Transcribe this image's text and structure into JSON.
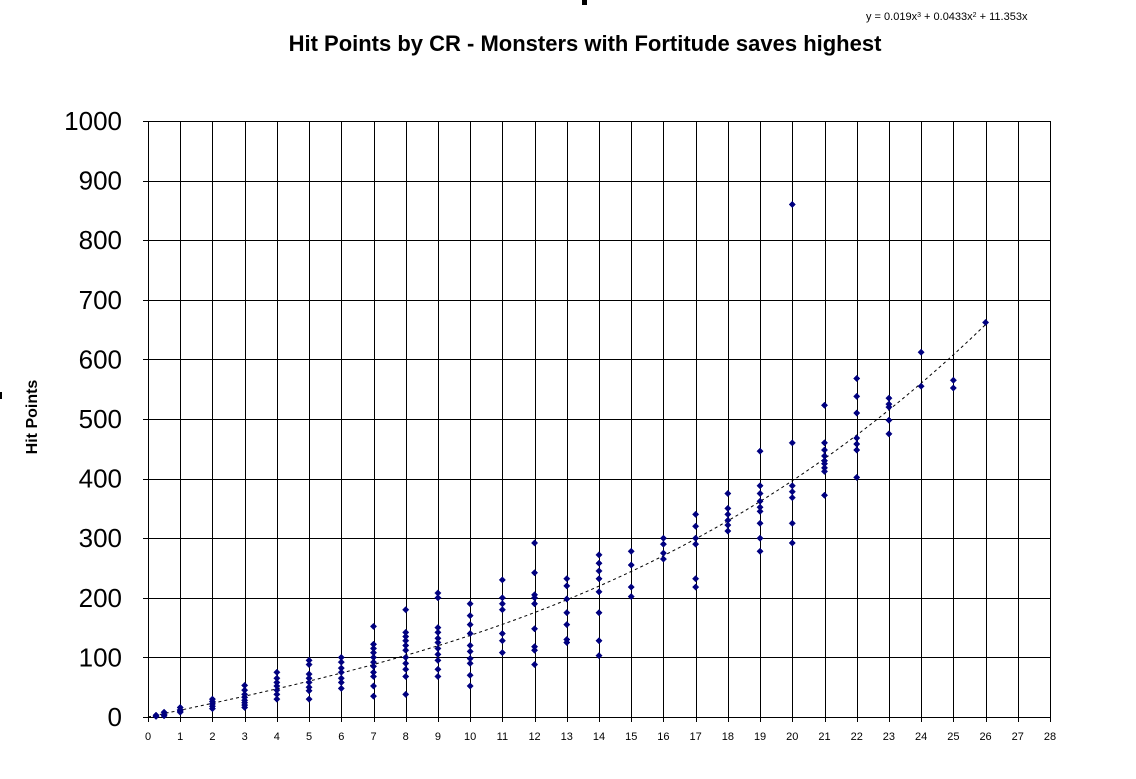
{
  "chart_data": {
    "type": "scatter",
    "title": "Hit Points by CR - Monsters with Fortitude saves highest",
    "ylabel": "Hit Points",
    "xlabel": "",
    "xlim": [
      0,
      28
    ],
    "ylim": [
      0,
      1000
    ],
    "x_ticks": [
      0,
      1,
      2,
      3,
      4,
      5,
      6,
      7,
      8,
      9,
      10,
      11,
      12,
      13,
      14,
      15,
      16,
      17,
      18,
      19,
      20,
      21,
      22,
      23,
      24,
      25,
      26,
      27,
      28
    ],
    "y_ticks": [
      0,
      100,
      200,
      300,
      400,
      500,
      600,
      700,
      800,
      900,
      1000
    ],
    "grid": true,
    "legend": "none",
    "colors": {
      "points": "#000080",
      "trendline": "#000000",
      "grid": "#000000"
    },
    "trendline": {
      "type": "polynomial",
      "label_base": "y = 0.019x",
      "label_exp1": "3",
      "label_mid": " + 0.0433x",
      "label_exp2": "2",
      "label_end": " + 11.353x",
      "coefficients": {
        "a3": 0.019,
        "a2": 0.0433,
        "a1": 11.353,
        "a0": 0
      },
      "x_range": [
        0,
        26
      ]
    },
    "points": [
      [
        0.25,
        3
      ],
      [
        0.25,
        1
      ],
      [
        0.5,
        8
      ],
      [
        0.5,
        4
      ],
      [
        0.5,
        2
      ],
      [
        1,
        16
      ],
      [
        1,
        12
      ],
      [
        1,
        10
      ],
      [
        1,
        8
      ],
      [
        2,
        30
      ],
      [
        2,
        26
      ],
      [
        2,
        22
      ],
      [
        2,
        18
      ],
      [
        2,
        14
      ],
      [
        3,
        53
      ],
      [
        3,
        45
      ],
      [
        3,
        38
      ],
      [
        3,
        33
      ],
      [
        3,
        28
      ],
      [
        3,
        24
      ],
      [
        3,
        20
      ],
      [
        3,
        16
      ],
      [
        4,
        75
      ],
      [
        4,
        65
      ],
      [
        4,
        58
      ],
      [
        4,
        52
      ],
      [
        4,
        45
      ],
      [
        4,
        38
      ],
      [
        4,
        30
      ],
      [
        5,
        95
      ],
      [
        5,
        88
      ],
      [
        5,
        72
      ],
      [
        5,
        65
      ],
      [
        5,
        58
      ],
      [
        5,
        50
      ],
      [
        5,
        44
      ],
      [
        5,
        30
      ],
      [
        6,
        100
      ],
      [
        6,
        92
      ],
      [
        6,
        82
      ],
      [
        6,
        75
      ],
      [
        6,
        65
      ],
      [
        6,
        58
      ],
      [
        6,
        48
      ],
      [
        7,
        152
      ],
      [
        7,
        122
      ],
      [
        7,
        115
      ],
      [
        7,
        108
      ],
      [
        7,
        100
      ],
      [
        7,
        92
      ],
      [
        7,
        85
      ],
      [
        7,
        75
      ],
      [
        7,
        68
      ],
      [
        7,
        52
      ],
      [
        7,
        35
      ],
      [
        8,
        180
      ],
      [
        8,
        142
      ],
      [
        8,
        135
      ],
      [
        8,
        128
      ],
      [
        8,
        120
      ],
      [
        8,
        112
      ],
      [
        8,
        100
      ],
      [
        8,
        90
      ],
      [
        8,
        80
      ],
      [
        8,
        68
      ],
      [
        8,
        38
      ],
      [
        9,
        208
      ],
      [
        9,
        200
      ],
      [
        9,
        150
      ],
      [
        9,
        142
      ],
      [
        9,
        132
      ],
      [
        9,
        125
      ],
      [
        9,
        115
      ],
      [
        9,
        105
      ],
      [
        9,
        95
      ],
      [
        9,
        80
      ],
      [
        9,
        68
      ],
      [
        10,
        190
      ],
      [
        10,
        170
      ],
      [
        10,
        155
      ],
      [
        10,
        140
      ],
      [
        10,
        120
      ],
      [
        10,
        110
      ],
      [
        10,
        98
      ],
      [
        10,
        90
      ],
      [
        10,
        70
      ],
      [
        10,
        52
      ],
      [
        11,
        230
      ],
      [
        11,
        200
      ],
      [
        11,
        190
      ],
      [
        11,
        180
      ],
      [
        11,
        140
      ],
      [
        11,
        128
      ],
      [
        11,
        108
      ],
      [
        12,
        292
      ],
      [
        12,
        242
      ],
      [
        12,
        205
      ],
      [
        12,
        200
      ],
      [
        12,
        190
      ],
      [
        12,
        148
      ],
      [
        12,
        118
      ],
      [
        12,
        112
      ],
      [
        12,
        88
      ],
      [
        13,
        232
      ],
      [
        13,
        220
      ],
      [
        13,
        198
      ],
      [
        13,
        175
      ],
      [
        13,
        155
      ],
      [
        13,
        130
      ],
      [
        13,
        125
      ],
      [
        14,
        272
      ],
      [
        14,
        258
      ],
      [
        14,
        245
      ],
      [
        14,
        232
      ],
      [
        14,
        210
      ],
      [
        14,
        175
      ],
      [
        14,
        128
      ],
      [
        14,
        103
      ],
      [
        15,
        278
      ],
      [
        15,
        255
      ],
      [
        15,
        218
      ],
      [
        15,
        202
      ],
      [
        16,
        300
      ],
      [
        16,
        290
      ],
      [
        16,
        275
      ],
      [
        16,
        265
      ],
      [
        17,
        340
      ],
      [
        17,
        320
      ],
      [
        17,
        300
      ],
      [
        17,
        290
      ],
      [
        17,
        232
      ],
      [
        17,
        218
      ],
      [
        18,
        375
      ],
      [
        18,
        350
      ],
      [
        18,
        340
      ],
      [
        18,
        330
      ],
      [
        18,
        322
      ],
      [
        18,
        312
      ],
      [
        19,
        446
      ],
      [
        19,
        388
      ],
      [
        19,
        375
      ],
      [
        19,
        362
      ],
      [
        19,
        352
      ],
      [
        19,
        345
      ],
      [
        19,
        325
      ],
      [
        19,
        300
      ],
      [
        19,
        278
      ],
      [
        20,
        860
      ],
      [
        20,
        460
      ],
      [
        20,
        388
      ],
      [
        20,
        378
      ],
      [
        20,
        368
      ],
      [
        20,
        325
      ],
      [
        20,
        292
      ],
      [
        21,
        523
      ],
      [
        21,
        460
      ],
      [
        21,
        448
      ],
      [
        21,
        438
      ],
      [
        21,
        430
      ],
      [
        21,
        425
      ],
      [
        21,
        418
      ],
      [
        21,
        412
      ],
      [
        21,
        372
      ],
      [
        22,
        568
      ],
      [
        22,
        538
      ],
      [
        22,
        510
      ],
      [
        22,
        468
      ],
      [
        22,
        458
      ],
      [
        22,
        448
      ],
      [
        22,
        402
      ],
      [
        23,
        535
      ],
      [
        23,
        525
      ],
      [
        23,
        520
      ],
      [
        23,
        498
      ],
      [
        23,
        475
      ],
      [
        24,
        612
      ],
      [
        24,
        555
      ],
      [
        25,
        565
      ],
      [
        25,
        552
      ],
      [
        26,
        662
      ]
    ]
  }
}
